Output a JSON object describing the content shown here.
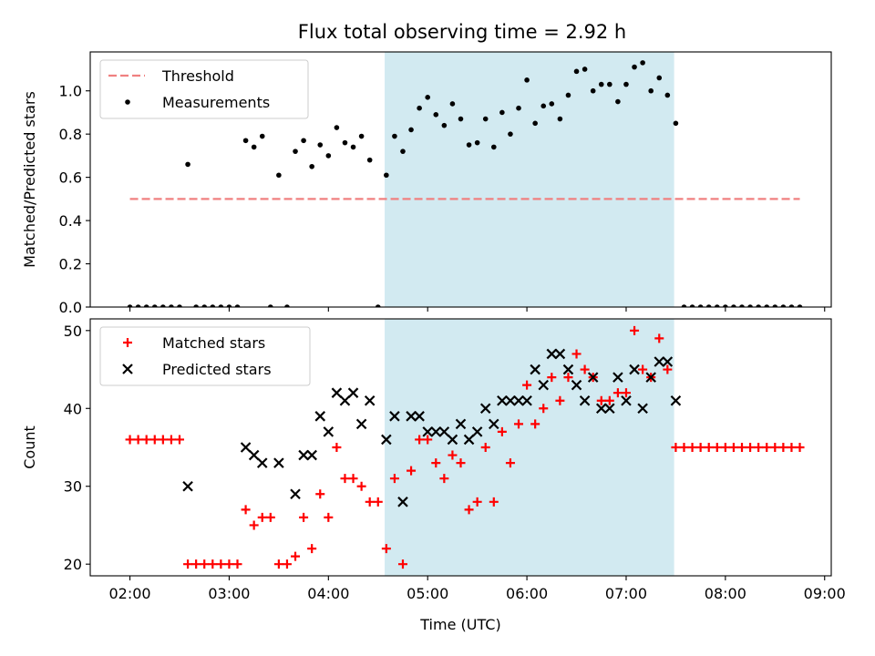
{
  "title": "Flux total observing time = 2.92 h",
  "colors": {
    "threshold": "#f08080",
    "measurements": "#000000",
    "matched": "#ff0000",
    "predicted": "#000000",
    "observing_window": "#add8e6"
  },
  "chart_data": [
    {
      "type": "scatter",
      "ylabel": "Matched/Predicted stars",
      "ylim": [
        0,
        1.18
      ],
      "xlim": [
        "01:36",
        "09:04"
      ],
      "yticks": [
        "0.0",
        "0.2",
        "0.4",
        "0.6",
        "0.8",
        "1.0"
      ],
      "shaded_interval": [
        "04:34",
        "07:29"
      ],
      "legend": {
        "placement": "top-left",
        "entries": [
          "Threshold",
          "Measurements"
        ]
      },
      "threshold": {
        "name": "Threshold",
        "value": 0.5,
        "x_range": [
          "02:00",
          "08:45"
        ],
        "style": "dashed"
      },
      "series": [
        {
          "name": "Measurements",
          "points": [
            [
              "02:00",
              0
            ],
            [
              "02:05",
              0
            ],
            [
              "02:10",
              0
            ],
            [
              "02:15",
              0
            ],
            [
              "02:20",
              0
            ],
            [
              "02:25",
              0
            ],
            [
              "02:30",
              0
            ],
            [
              "02:35",
              0.66
            ],
            [
              "02:40",
              0
            ],
            [
              "02:45",
              0
            ],
            [
              "02:50",
              0
            ],
            [
              "02:55",
              0
            ],
            [
              "03:00",
              0
            ],
            [
              "03:05",
              0
            ],
            [
              "03:10",
              0.77
            ],
            [
              "03:15",
              0.74
            ],
            [
              "03:20",
              0.79
            ],
            [
              "03:25",
              0
            ],
            [
              "03:30",
              0.61
            ],
            [
              "03:35",
              0
            ],
            [
              "03:40",
              0.72
            ],
            [
              "03:45",
              0.77
            ],
            [
              "03:50",
              0.65
            ],
            [
              "03:55",
              0.75
            ],
            [
              "04:00",
              0.7
            ],
            [
              "04:05",
              0.83
            ],
            [
              "04:10",
              0.76
            ],
            [
              "04:15",
              0.74
            ],
            [
              "04:20",
              0.79
            ],
            [
              "04:25",
              0.68
            ],
            [
              "04:30",
              0
            ],
            [
              "04:35",
              0.61
            ],
            [
              "04:40",
              0.79
            ],
            [
              "04:45",
              0.72
            ],
            [
              "04:50",
              0.82
            ],
            [
              "04:55",
              0.92
            ],
            [
              "05:00",
              0.97
            ],
            [
              "05:05",
              0.89
            ],
            [
              "05:10",
              0.84
            ],
            [
              "05:15",
              0.94
            ],
            [
              "05:20",
              0.87
            ],
            [
              "05:25",
              0.75
            ],
            [
              "05:30",
              0.76
            ],
            [
              "05:35",
              0.87
            ],
            [
              "05:40",
              0.74
            ],
            [
              "05:45",
              0.9
            ],
            [
              "05:50",
              0.8
            ],
            [
              "05:55",
              0.92
            ],
            [
              "06:00",
              1.05
            ],
            [
              "06:05",
              0.85
            ],
            [
              "06:10",
              0.93
            ],
            [
              "06:15",
              0.94
            ],
            [
              "06:20",
              0.87
            ],
            [
              "06:25",
              0.98
            ],
            [
              "06:30",
              1.09
            ],
            [
              "06:35",
              1.1
            ],
            [
              "06:40",
              1.0
            ],
            [
              "06:45",
              1.03
            ],
            [
              "06:50",
              1.03
            ],
            [
              "06:55",
              0.95
            ],
            [
              "07:00",
              1.03
            ],
            [
              "07:05",
              1.11
            ],
            [
              "07:10",
              1.13
            ],
            [
              "07:15",
              1.0
            ],
            [
              "07:20",
              1.06
            ],
            [
              "07:25",
              0.98
            ],
            [
              "07:30",
              0.85
            ],
            [
              "07:35",
              0
            ],
            [
              "07:40",
              0
            ],
            [
              "07:45",
              0
            ],
            [
              "07:50",
              0
            ],
            [
              "07:55",
              0
            ],
            [
              "08:00",
              0
            ],
            [
              "08:05",
              0
            ],
            [
              "08:10",
              0
            ],
            [
              "08:15",
              0
            ],
            [
              "08:20",
              0
            ],
            [
              "08:25",
              0
            ],
            [
              "08:30",
              0
            ],
            [
              "08:35",
              0
            ],
            [
              "08:40",
              0
            ],
            [
              "08:45",
              0
            ]
          ]
        }
      ]
    },
    {
      "type": "scatter",
      "xlabel": "Time (UTC)",
      "ylabel": "Count",
      "ylim": [
        18.5,
        51.5
      ],
      "xlim": [
        "01:36",
        "09:04"
      ],
      "xticks": [
        "02:00",
        "03:00",
        "04:00",
        "05:00",
        "06:00",
        "07:00",
        "08:00",
        "09:00"
      ],
      "yticks": [
        "20",
        "30",
        "40",
        "50"
      ],
      "shaded_interval": [
        "04:34",
        "07:29"
      ],
      "legend": {
        "placement": "top-left",
        "entries": [
          "Matched stars",
          "Predicted stars"
        ]
      },
      "series": [
        {
          "name": "Matched stars",
          "marker": "plus",
          "points": [
            [
              "02:00",
              36
            ],
            [
              "02:05",
              36
            ],
            [
              "02:10",
              36
            ],
            [
              "02:15",
              36
            ],
            [
              "02:20",
              36
            ],
            [
              "02:25",
              36
            ],
            [
              "02:30",
              36
            ],
            [
              "02:35",
              20
            ],
            [
              "02:40",
              20
            ],
            [
              "02:45",
              20
            ],
            [
              "02:50",
              20
            ],
            [
              "02:55",
              20
            ],
            [
              "03:00",
              20
            ],
            [
              "03:05",
              20
            ],
            [
              "03:10",
              27
            ],
            [
              "03:15",
              25
            ],
            [
              "03:20",
              26
            ],
            [
              "03:25",
              26
            ],
            [
              "03:30",
              20
            ],
            [
              "03:35",
              20
            ],
            [
              "03:40",
              21
            ],
            [
              "03:45",
              26
            ],
            [
              "03:50",
              22
            ],
            [
              "03:55",
              29
            ],
            [
              "04:00",
              26
            ],
            [
              "04:05",
              35
            ],
            [
              "04:10",
              31
            ],
            [
              "04:15",
              31
            ],
            [
              "04:20",
              30
            ],
            [
              "04:25",
              28
            ],
            [
              "04:30",
              28
            ],
            [
              "04:35",
              22
            ],
            [
              "04:40",
              31
            ],
            [
              "04:45",
              20
            ],
            [
              "04:50",
              32
            ],
            [
              "04:55",
              36
            ],
            [
              "05:00",
              36
            ],
            [
              "05:05",
              33
            ],
            [
              "05:10",
              31
            ],
            [
              "05:15",
              34
            ],
            [
              "05:20",
              33
            ],
            [
              "05:25",
              27
            ],
            [
              "05:30",
              28
            ],
            [
              "05:35",
              35
            ],
            [
              "05:40",
              28
            ],
            [
              "05:45",
              37
            ],
            [
              "05:50",
              33
            ],
            [
              "05:55",
              38
            ],
            [
              "06:00",
              43
            ],
            [
              "06:05",
              38
            ],
            [
              "06:10",
              40
            ],
            [
              "06:15",
              44
            ],
            [
              "06:20",
              41
            ],
            [
              "06:25",
              44
            ],
            [
              "06:30",
              47
            ],
            [
              "06:35",
              45
            ],
            [
              "06:40",
              44
            ],
            [
              "06:45",
              41
            ],
            [
              "06:50",
              41
            ],
            [
              "06:55",
              42
            ],
            [
              "07:00",
              42
            ],
            [
              "07:05",
              50
            ],
            [
              "07:10",
              45
            ],
            [
              "07:15",
              44
            ],
            [
              "07:20",
              49
            ],
            [
              "07:25",
              45
            ],
            [
              "07:30",
              35
            ],
            [
              "07:35",
              35
            ],
            [
              "07:40",
              35
            ],
            [
              "07:45",
              35
            ],
            [
              "07:50",
              35
            ],
            [
              "07:55",
              35
            ],
            [
              "08:00",
              35
            ],
            [
              "08:05",
              35
            ],
            [
              "08:10",
              35
            ],
            [
              "08:15",
              35
            ],
            [
              "08:20",
              35
            ],
            [
              "08:25",
              35
            ],
            [
              "08:30",
              35
            ],
            [
              "08:35",
              35
            ],
            [
              "08:40",
              35
            ],
            [
              "08:45",
              35
            ]
          ]
        },
        {
          "name": "Predicted stars",
          "marker": "x",
          "points": [
            [
              "02:35",
              30
            ],
            [
              "03:10",
              35
            ],
            [
              "03:15",
              34
            ],
            [
              "03:20",
              33
            ],
            [
              "03:30",
              33
            ],
            [
              "03:40",
              29
            ],
            [
              "03:45",
              34
            ],
            [
              "03:50",
              34
            ],
            [
              "03:55",
              39
            ],
            [
              "04:00",
              37
            ],
            [
              "04:05",
              42
            ],
            [
              "04:10",
              41
            ],
            [
              "04:15",
              42
            ],
            [
              "04:20",
              38
            ],
            [
              "04:25",
              41
            ],
            [
              "04:35",
              36
            ],
            [
              "04:40",
              39
            ],
            [
              "04:45",
              28
            ],
            [
              "04:50",
              39
            ],
            [
              "04:55",
              39
            ],
            [
              "05:00",
              37
            ],
            [
              "05:05",
              37
            ],
            [
              "05:10",
              37
            ],
            [
              "05:15",
              36
            ],
            [
              "05:20",
              38
            ],
            [
              "05:25",
              36
            ],
            [
              "05:30",
              37
            ],
            [
              "05:35",
              40
            ],
            [
              "05:40",
              38
            ],
            [
              "05:45",
              41
            ],
            [
              "05:50",
              41
            ],
            [
              "05:55",
              41
            ],
            [
              "06:00",
              41
            ],
            [
              "06:05",
              45
            ],
            [
              "06:10",
              43
            ],
            [
              "06:15",
              47
            ],
            [
              "06:20",
              47
            ],
            [
              "06:25",
              45
            ],
            [
              "06:30",
              43
            ],
            [
              "06:35",
              41
            ],
            [
              "06:40",
              44
            ],
            [
              "06:45",
              40
            ],
            [
              "06:50",
              40
            ],
            [
              "06:55",
              44
            ],
            [
              "07:00",
              41
            ],
            [
              "07:05",
              45
            ],
            [
              "07:10",
              40
            ],
            [
              "07:15",
              44
            ],
            [
              "07:20",
              46
            ],
            [
              "07:25",
              46
            ],
            [
              "07:30",
              41
            ]
          ]
        }
      ]
    }
  ]
}
